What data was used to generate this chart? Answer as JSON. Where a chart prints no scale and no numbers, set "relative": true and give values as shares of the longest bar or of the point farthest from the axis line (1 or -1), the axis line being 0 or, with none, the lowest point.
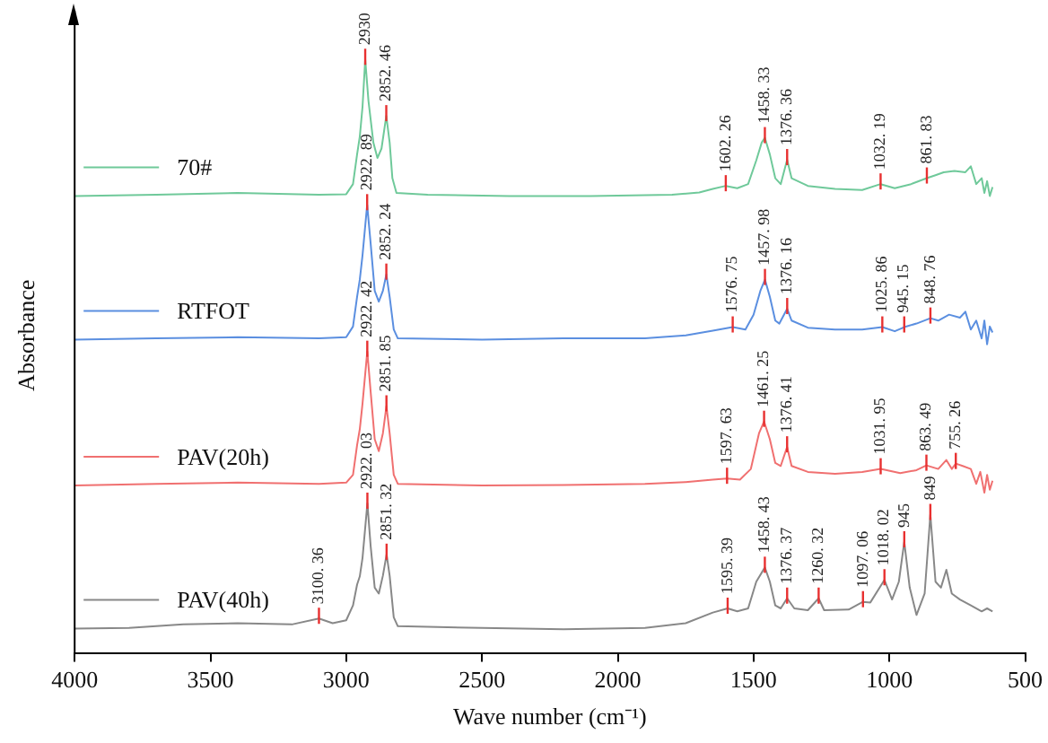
{
  "chart_data": {
    "type": "line",
    "relative": true,
    "xlabel": "Wave number (cm⁻¹)",
    "ylabel": "Absorbance",
    "xlim": [
      4000,
      500
    ],
    "xticks": [
      4000,
      3500,
      3000,
      2500,
      2000,
      1500,
      1000,
      500
    ],
    "grid": false,
    "legend": "left",
    "marker": "none",
    "line_style": "solid",
    "series": [
      {
        "name": "70#",
        "color": "#6fc99a",
        "x": [
          4000,
          3700,
          3400,
          3100,
          3000,
          2975,
          2960,
          2950,
          2940,
          2930,
          2918,
          2900,
          2885,
          2870,
          2852.46,
          2840,
          2830,
          2815,
          2700,
          2400,
          2100,
          1800,
          1700,
          1650,
          1602.26,
          1560,
          1520,
          1490,
          1470,
          1458.33,
          1440,
          1420,
          1400,
          1376.36,
          1360,
          1300,
          1200,
          1100,
          1032.19,
          980,
          920,
          861.83,
          830,
          800,
          760,
          720,
          700,
          680,
          660,
          650,
          640,
          630,
          620
        ],
        "values": [
          0.77,
          0.772,
          0.775,
          0.772,
          0.773,
          0.79,
          0.84,
          0.87,
          0.92,
          1.0,
          0.93,
          0.86,
          0.834,
          0.85,
          0.905,
          0.86,
          0.8,
          0.775,
          0.772,
          0.77,
          0.77,
          0.772,
          0.776,
          0.782,
          0.787,
          0.783,
          0.79,
          0.83,
          0.86,
          0.868,
          0.84,
          0.8,
          0.79,
          0.831,
          0.8,
          0.787,
          0.782,
          0.78,
          0.79,
          0.783,
          0.79,
          0.8,
          0.805,
          0.81,
          0.812,
          0.81,
          0.82,
          0.79,
          0.8,
          0.775,
          0.795,
          0.77,
          0.785
        ]
      },
      {
        "name": "RTFOT",
        "color": "#5b8fe0",
        "x": [
          4000,
          3700,
          3400,
          3100,
          3000,
          2975,
          2960,
          2950,
          2940,
          2922.89,
          2910,
          2895,
          2880,
          2865,
          2852.24,
          2840,
          2825,
          2810,
          2500,
          2200,
          1900,
          1750,
          1650,
          1576.75,
          1530,
          1500,
          1475,
          1457.98,
          1440,
          1420,
          1405,
          1376.16,
          1360,
          1300,
          1200,
          1100,
          1025.86,
          980,
          945.15,
          900,
          848.76,
          820,
          780,
          740,
          720,
          700,
          680,
          660,
          650,
          640,
          630,
          620
        ],
        "values": [
          0.528,
          0.53,
          0.532,
          0.53,
          0.532,
          0.55,
          0.6,
          0.629,
          0.67,
          0.755,
          0.69,
          0.61,
          0.592,
          0.61,
          0.638,
          0.6,
          0.545,
          0.53,
          0.528,
          0.53,
          0.53,
          0.535,
          0.543,
          0.549,
          0.545,
          0.57,
          0.61,
          0.629,
          0.6,
          0.56,
          0.555,
          0.58,
          0.56,
          0.548,
          0.545,
          0.545,
          0.549,
          0.542,
          0.549,
          0.555,
          0.564,
          0.56,
          0.57,
          0.565,
          0.575,
          0.545,
          0.56,
          0.53,
          0.56,
          0.52,
          0.55,
          0.54
        ]
      },
      {
        "name": "PAV(20h)",
        "color": "#f07070",
        "x": [
          4000,
          3700,
          3400,
          3100,
          3000,
          2975,
          2960,
          2950,
          2940,
          2922.42,
          2910,
          2895,
          2880,
          2865,
          2851.85,
          2840,
          2825,
          2810,
          2500,
          2200,
          1900,
          1750,
          1650,
          1597.63,
          1550,
          1510,
          1480,
          1461.25,
          1440,
          1420,
          1400,
          1376.41,
          1360,
          1300,
          1200,
          1100,
          1031.95,
          960,
          900,
          863.49,
          820,
          790,
          770,
          755.26,
          730,
          700,
          680,
          665,
          650,
          640,
          630,
          620
        ],
        "values": [
          0.282,
          0.285,
          0.287,
          0.285,
          0.287,
          0.3,
          0.35,
          0.377,
          0.42,
          0.508,
          0.44,
          0.36,
          0.34,
          0.37,
          0.416,
          0.37,
          0.3,
          0.285,
          0.282,
          0.283,
          0.285,
          0.288,
          0.292,
          0.294,
          0.292,
          0.31,
          0.37,
          0.39,
          0.36,
          0.32,
          0.315,
          0.347,
          0.315,
          0.305,
          0.302,
          0.305,
          0.31,
          0.303,
          0.308,
          0.316,
          0.31,
          0.325,
          0.31,
          0.319,
          0.315,
          0.31,
          0.285,
          0.305,
          0.27,
          0.3,
          0.275,
          0.29
        ]
      },
      {
        "name": "PAV(40h)",
        "color": "#888888",
        "x": [
          4000,
          3800,
          3600,
          3400,
          3200,
          3100.36,
          3050,
          3000,
          2975,
          2960,
          2950,
          2940,
          2922.03,
          2910,
          2895,
          2880,
          2865,
          2851.32,
          2840,
          2825,
          2810,
          2500,
          2200,
          1900,
          1750,
          1650,
          1595.39,
          1560,
          1520,
          1490,
          1458.43,
          1440,
          1420,
          1400,
          1376.37,
          1350,
          1300,
          1260.32,
          1240,
          1150,
          1097.06,
          1070,
          1018.02,
          990,
          965,
          945,
          925,
          900,
          870,
          849,
          830,
          810,
          790,
          770,
          740,
          700,
          660,
          640,
          620
        ],
        "values": [
          0.041,
          0.042,
          0.048,
          0.05,
          0.048,
          0.058,
          0.05,
          0.055,
          0.08,
          0.115,
          0.129,
          0.16,
          0.252,
          0.18,
          0.11,
          0.1,
          0.13,
          0.166,
          0.13,
          0.06,
          0.045,
          0.042,
          0.04,
          0.042,
          0.05,
          0.068,
          0.075,
          0.07,
          0.075,
          0.12,
          0.144,
          0.12,
          0.08,
          0.075,
          0.092,
          0.075,
          0.072,
          0.092,
          0.072,
          0.073,
          0.086,
          0.085,
          0.123,
          0.09,
          0.12,
          0.187,
          0.11,
          0.064,
          0.1,
          0.233,
          0.12,
          0.11,
          0.14,
          0.1,
          0.09,
          0.08,
          0.07,
          0.075,
          0.07
        ]
      }
    ],
    "annotations": [
      {
        "text": "2930",
        "x": 2930,
        "y": 1.0
      },
      {
        "text": "2852. 46",
        "x": 2852.46,
        "y": 0.905
      },
      {
        "text": "1602. 26",
        "x": 1602.26,
        "y": 0.787
      },
      {
        "text": "1458. 33",
        "x": 1458.33,
        "y": 0.868
      },
      {
        "text": "1376. 36",
        "x": 1376.36,
        "y": 0.831
      },
      {
        "text": "1032. 19",
        "x": 1032.19,
        "y": 0.79
      },
      {
        "text": "861. 83",
        "x": 861.83,
        "y": 0.8
      },
      {
        "text": "2922. 89",
        "x": 2922.89,
        "y": 0.755
      },
      {
        "text": "2852. 24",
        "x": 2852.24,
        "y": 0.638
      },
      {
        "text": "1576. 75",
        "x": 1576.75,
        "y": 0.549
      },
      {
        "text": "1457. 98",
        "x": 1457.98,
        "y": 0.629
      },
      {
        "text": "1376. 16",
        "x": 1376.16,
        "y": 0.58
      },
      {
        "text": "1025. 86",
        "x": 1025.86,
        "y": 0.549
      },
      {
        "text": "945. 15",
        "x": 945.15,
        "y": 0.549
      },
      {
        "text": "848. 76",
        "x": 848.76,
        "y": 0.564
      },
      {
        "text": "2922. 42",
        "x": 2922.42,
        "y": 0.508
      },
      {
        "text": "2851. 85",
        "x": 2851.85,
        "y": 0.416
      },
      {
        "text": "1597. 63",
        "x": 1597.63,
        "y": 0.294
      },
      {
        "text": "1461. 25",
        "x": 1461.25,
        "y": 0.39
      },
      {
        "text": "1376. 41",
        "x": 1376.41,
        "y": 0.347
      },
      {
        "text": "1031. 95",
        "x": 1031.95,
        "y": 0.31
      },
      {
        "text": "863. 49",
        "x": 863.49,
        "y": 0.316
      },
      {
        "text": "755. 26",
        "x": 755.26,
        "y": 0.319
      },
      {
        "text": "3100. 36",
        "x": 3100.36,
        "y": 0.058
      },
      {
        "text": "2922. 03",
        "x": 2922.03,
        "y": 0.252
      },
      {
        "text": "2851. 32",
        "x": 2851.32,
        "y": 0.166
      },
      {
        "text": "1595. 39",
        "x": 1595.39,
        "y": 0.075
      },
      {
        "text": "1458. 43",
        "x": 1458.43,
        "y": 0.144
      },
      {
        "text": "1376. 37",
        "x": 1376.37,
        "y": 0.092
      },
      {
        "text": "1260. 32",
        "x": 1260.32,
        "y": 0.092
      },
      {
        "text": "1097. 06",
        "x": 1097.06,
        "y": 0.086
      },
      {
        "text": "1018. 02",
        "x": 1018.02,
        "y": 0.123
      },
      {
        "text": "945",
        "x": 945,
        "y": 0.187
      },
      {
        "text": "849",
        "x": 849,
        "y": 0.233
      }
    ]
  }
}
